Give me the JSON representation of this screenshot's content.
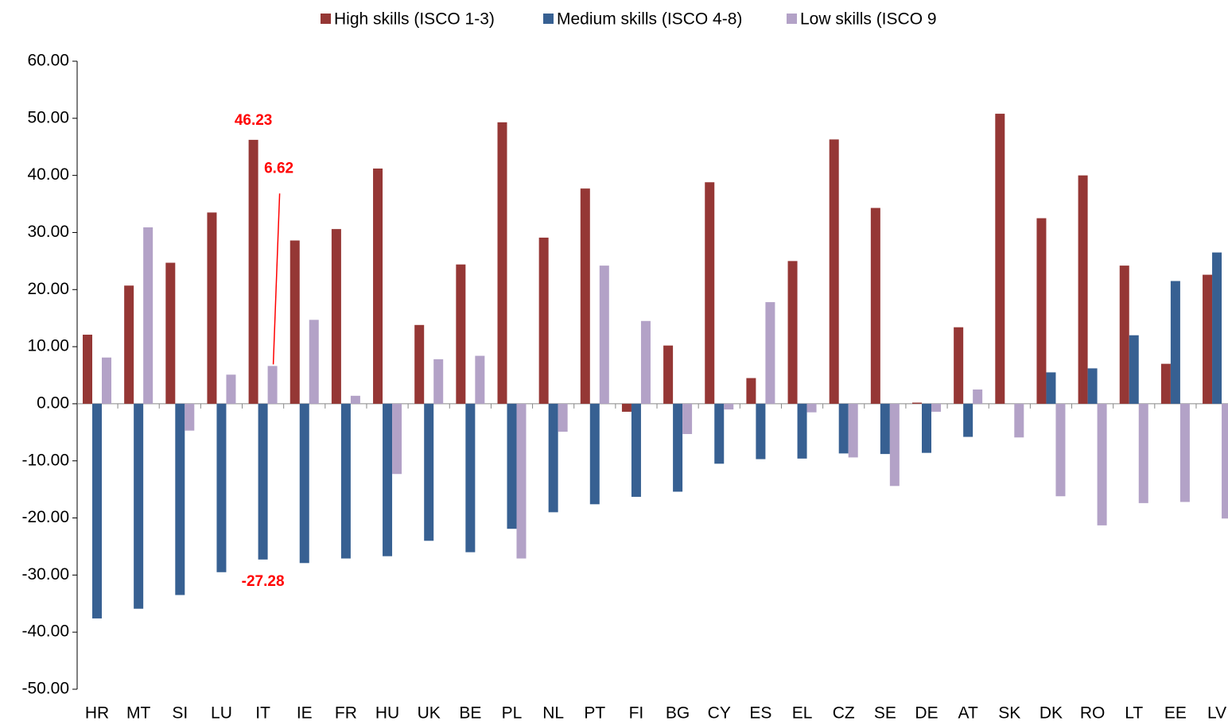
{
  "chart_data": {
    "type": "bar",
    "categories": [
      "HR",
      "MT",
      "SI",
      "LU",
      "IT",
      "IE",
      "FR",
      "HU",
      "UK",
      "BE",
      "PL",
      "NL",
      "PT",
      "FI",
      "BG",
      "CY",
      "ES",
      "EL",
      "CZ",
      "SE",
      "DE",
      "AT",
      "SK",
      "DK",
      "RO",
      "LT",
      "EE",
      "LV"
    ],
    "series": [
      {
        "name": "High skills (ISCO 1-3)",
        "color": "#953735",
        "values": [
          12.1,
          20.7,
          24.7,
          33.5,
          46.23,
          28.6,
          30.6,
          41.2,
          13.8,
          24.4,
          49.3,
          29.1,
          37.7,
          -1.4,
          10.2,
          38.8,
          4.5,
          25.0,
          46.3,
          34.3,
          0.2,
          13.4,
          50.8,
          32.5,
          40.0,
          24.2,
          7.0,
          22.6
        ],
        "value_labels": [
          null,
          null,
          null,
          null,
          "46.23",
          null,
          null,
          null,
          null,
          null,
          null,
          null,
          null,
          null,
          null,
          null,
          null,
          null,
          null,
          null,
          null,
          null,
          null,
          null,
          null,
          null,
          null,
          null
        ]
      },
      {
        "name": "Medium skills (ISCO 4-8)",
        "color": "#376092",
        "values": [
          -37.6,
          -35.9,
          -33.5,
          -29.5,
          -27.28,
          -27.9,
          -27.1,
          -26.7,
          -24.0,
          -26.0,
          -21.9,
          -19.0,
          -17.6,
          -16.3,
          -15.4,
          -10.5,
          -9.7,
          -9.6,
          -8.7,
          -8.8,
          -8.6,
          -5.8,
          0,
          5.5,
          6.2,
          12.0,
          21.5,
          26.5
        ],
        "value_labels": [
          null,
          null,
          null,
          null,
          "-27.28",
          null,
          null,
          null,
          null,
          null,
          null,
          null,
          null,
          null,
          null,
          null,
          null,
          null,
          null,
          null,
          null,
          null,
          null,
          null,
          null,
          null,
          null,
          null
        ]
      },
      {
        "name": "Low skills (ISCO 9",
        "color": "#b3a2c7",
        "values": [
          8.1,
          30.9,
          -4.7,
          5.1,
          6.62,
          14.7,
          1.4,
          -12.3,
          7.8,
          8.4,
          -27.1,
          -4.9,
          24.2,
          14.5,
          -5.3,
          -1.0,
          17.8,
          -1.5,
          -9.4,
          -14.4,
          -1.4,
          2.5,
          -5.9,
          -16.2,
          -21.3,
          -17.4,
          -17.2,
          -20.1
        ],
        "value_labels": [
          null,
          null,
          null,
          null,
          "6.62",
          null,
          null,
          null,
          null,
          null,
          null,
          null,
          null,
          null,
          null,
          null,
          null,
          null,
          null,
          null,
          null,
          null,
          null,
          null,
          null,
          null,
          null,
          null
        ]
      }
    ],
    "ylim": [
      -50,
      60
    ],
    "yticks": [
      {
        "value": -50,
        "label": "-50.00"
      },
      {
        "value": -40,
        "label": "-40.00"
      },
      {
        "value": -30,
        "label": "-30.00"
      },
      {
        "value": -20,
        "label": "-20.00"
      },
      {
        "value": -10,
        "label": "-10.00"
      },
      {
        "value": 0,
        "label": "0.00"
      },
      {
        "value": 10,
        "label": "10.00"
      },
      {
        "value": 20,
        "label": "20.00"
      },
      {
        "value": 30,
        "label": "30.00"
      },
      {
        "value": 40,
        "label": "40.00"
      },
      {
        "value": 50,
        "label": "50.00"
      },
      {
        "value": 60,
        "label": "60.00"
      }
    ],
    "legend": "top",
    "label_color": "#ff0000"
  }
}
